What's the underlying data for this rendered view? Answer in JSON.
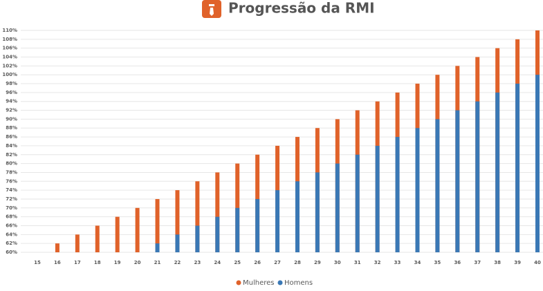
{
  "chart_data": {
    "type": "bar",
    "title": "Progressão da RMI",
    "categories": [
      "15",
      "16",
      "17",
      "18",
      "19",
      "20",
      "21",
      "22",
      "23",
      "24",
      "25",
      "26",
      "27",
      "28",
      "29",
      "30",
      "31",
      "32",
      "33",
      "34",
      "35",
      "36",
      "37",
      "38",
      "39",
      "40"
    ],
    "series": [
      {
        "name": "Mulheres",
        "color": "#e0622a",
        "values": [
          60,
          62,
          64,
          66,
          68,
          70,
          72,
          74,
          76,
          78,
          80,
          82,
          84,
          86,
          88,
          90,
          92,
          94,
          96,
          98,
          100,
          102,
          104,
          106,
          108,
          110
        ]
      },
      {
        "name": "Homens",
        "color": "#3a78b5",
        "values": [
          60,
          60,
          60,
          60,
          60,
          60,
          62,
          64,
          66,
          68,
          70,
          72,
          74,
          76,
          78,
          80,
          82,
          84,
          86,
          88,
          90,
          92,
          94,
          96,
          98,
          100
        ]
      }
    ],
    "ylim": [
      60,
      110
    ],
    "yticks": [
      {
        "value": 60,
        "label": "60%"
      },
      {
        "value": 62,
        "label": "62%"
      },
      {
        "value": 64,
        "label": "64%"
      },
      {
        "value": 66,
        "label": "66%"
      },
      {
        "value": 68,
        "label": "68%"
      },
      {
        "value": 70,
        "label": "70%"
      },
      {
        "value": 72,
        "label": "72%"
      },
      {
        "value": 74,
        "label": "74%"
      },
      {
        "value": 76,
        "label": "76%"
      },
      {
        "value": 78,
        "label": "78%"
      },
      {
        "value": 80,
        "label": "80%"
      },
      {
        "value": 82,
        "label": "82%"
      },
      {
        "value": 84,
        "label": "84%"
      },
      {
        "value": 86,
        "label": "86%"
      },
      {
        "value": 88,
        "label": "88%"
      },
      {
        "value": 90,
        "label": "90%"
      },
      {
        "value": 92,
        "label": "92%"
      },
      {
        "value": 94,
        "label": "94%"
      },
      {
        "value": 96,
        "label": "96%"
      },
      {
        "value": 98,
        "label": "98%"
      },
      {
        "value": 100,
        "label": "100%"
      },
      {
        "value": 102,
        "label": "102%"
      },
      {
        "value": 104,
        "label": "104%"
      },
      {
        "value": 106,
        "label": "106%"
      },
      {
        "value": 108,
        "label": "108%"
      },
      {
        "value": 110,
        "label": "110%"
      }
    ],
    "grid": true,
    "legend": "bottom"
  }
}
